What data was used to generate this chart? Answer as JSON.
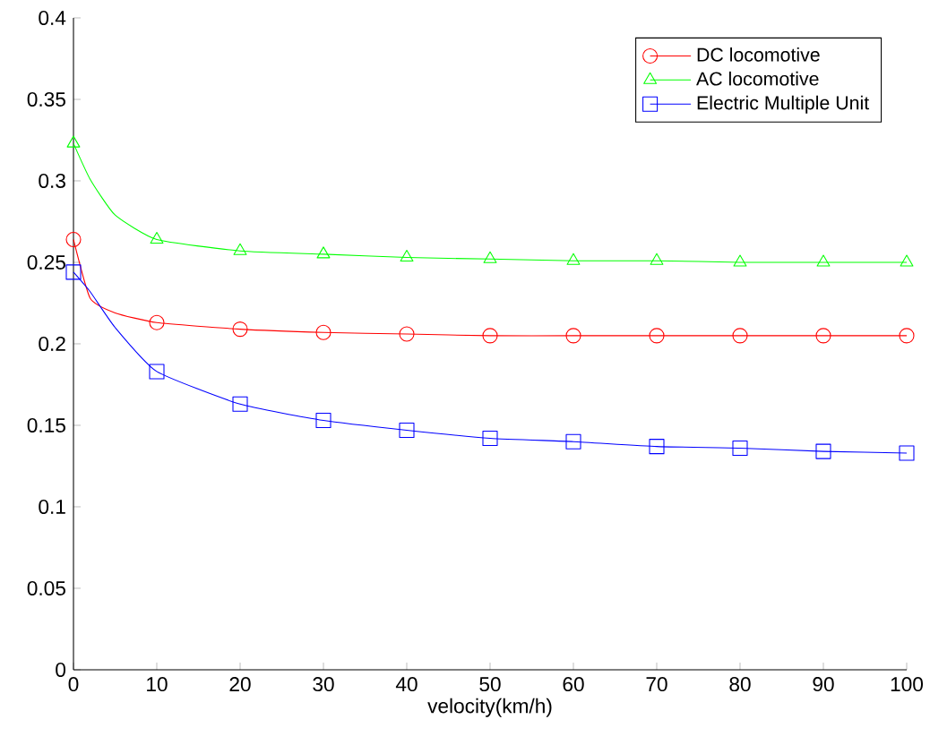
{
  "chart_data": {
    "type": "line",
    "xlabel": "velocity(km/h)",
    "x": [
      0,
      2,
      5,
      10,
      20,
      30,
      40,
      50,
      60,
      70,
      80,
      90,
      100
    ],
    "series": [
      {
        "name": "DC locomotive",
        "color": "#ff0000",
        "marker": "circle",
        "values": [
          0.264,
          0.228,
          0.219,
          0.213,
          0.209,
          0.207,
          0.206,
          0.205,
          0.205,
          0.205,
          0.205,
          0.205,
          0.205
        ]
      },
      {
        "name": "AC locomotive",
        "color": "#00ff00",
        "marker": "triangle",
        "values": [
          0.323,
          0.301,
          0.279,
          0.264,
          0.257,
          0.255,
          0.253,
          0.252,
          0.251,
          0.251,
          0.25,
          0.25,
          0.25
        ]
      },
      {
        "name": "Electric Multiple Unit",
        "color": "#0000ff",
        "marker": "square",
        "values": [
          0.244,
          0.232,
          0.21,
          0.183,
          0.163,
          0.153,
          0.147,
          0.142,
          0.14,
          0.137,
          0.136,
          0.134,
          0.133
        ]
      }
    ],
    "xlim": [
      0,
      100
    ],
    "ylim": [
      0,
      0.4
    ],
    "xticks": [
      0,
      10,
      20,
      30,
      40,
      50,
      60,
      70,
      80,
      90,
      100
    ],
    "yticks": [
      0,
      0.05,
      0.1,
      0.15,
      0.2,
      0.25,
      0.3,
      0.35,
      0.4
    ],
    "legend": "top right",
    "grid": false
  }
}
